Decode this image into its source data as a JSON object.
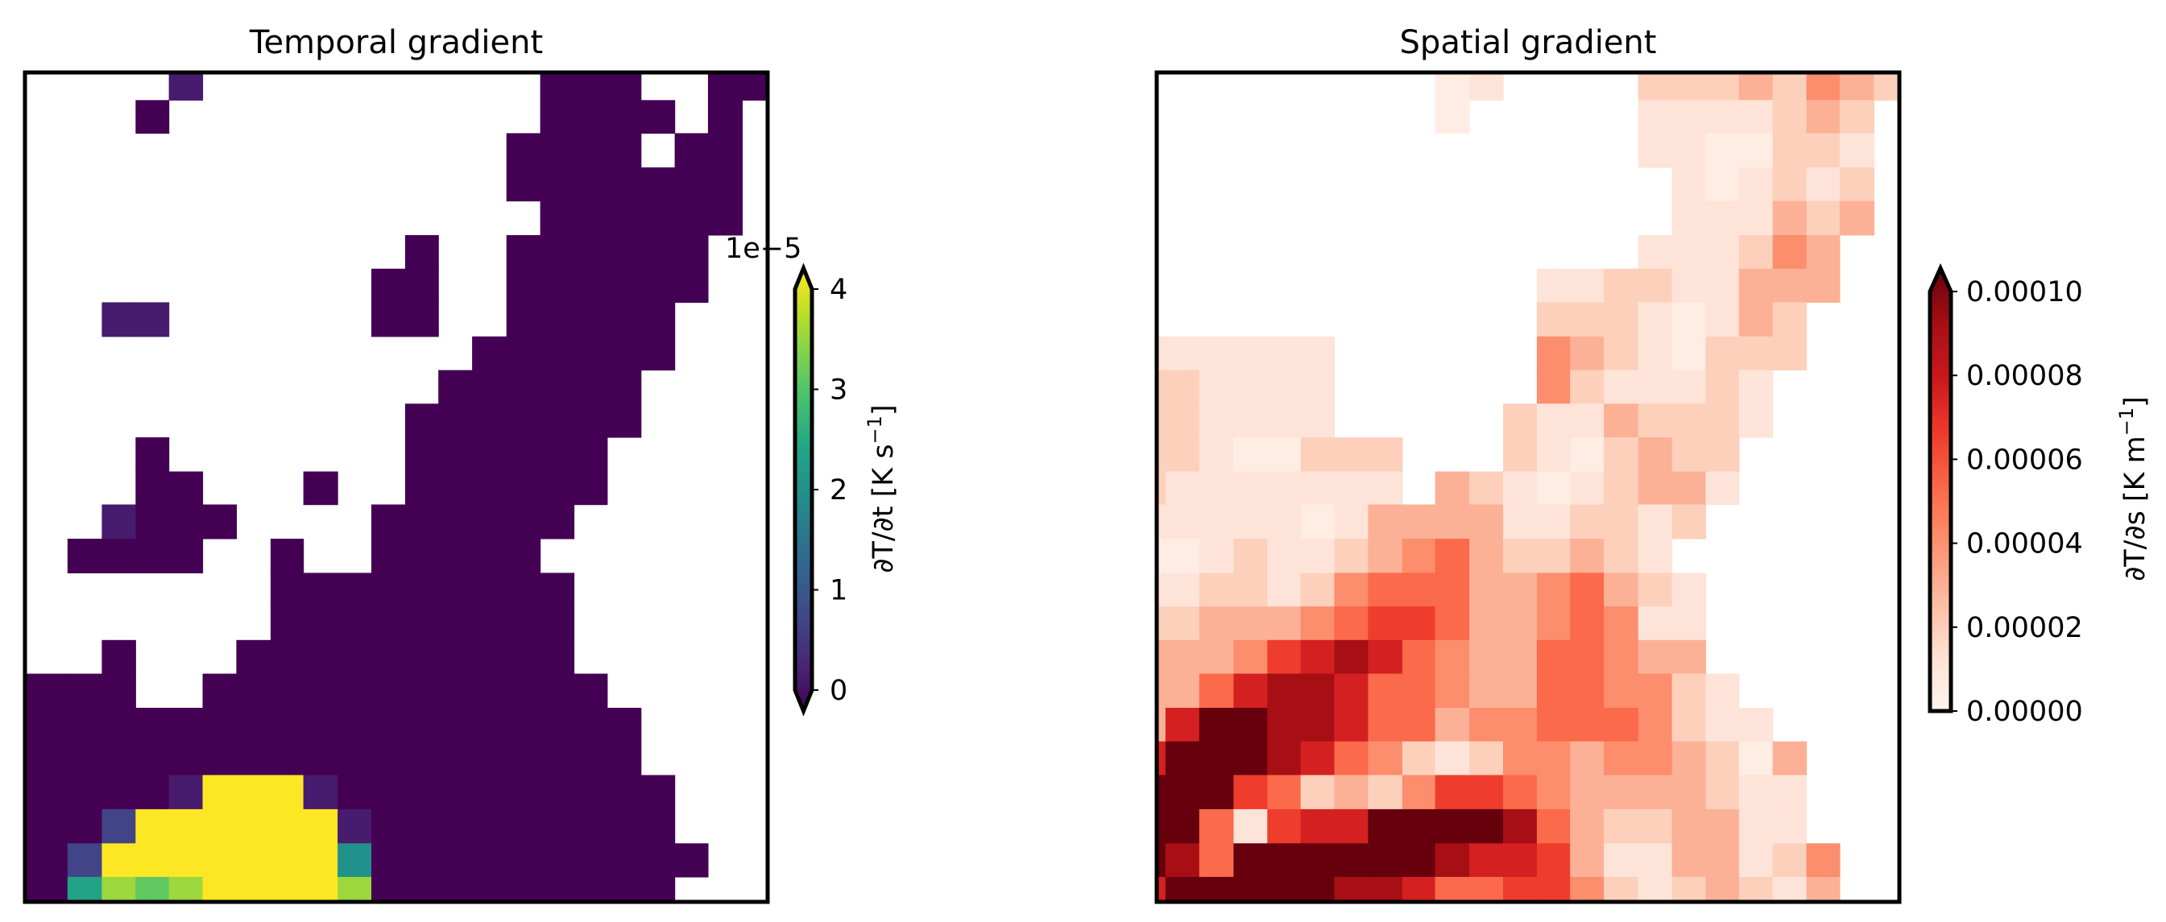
{
  "chart_data": [
    {
      "type": "heatmap",
      "title": "Temporal gradient",
      "colormap": "viridis",
      "colorbar": {
        "label": {
          "main": "∂T/∂t [K s",
          "sup": "−1",
          "close": "]"
        },
        "offset_text": "1e−5",
        "ticks": [
          0,
          1,
          2,
          3,
          4
        ],
        "tick_labels": [
          "0",
          "1",
          "2",
          "3",
          "4"
        ],
        "range": [
          0,
          4
        ],
        "extend": "both",
        "scale_factor": 1e-05
      },
      "cell_key": {
        ".": null,
        "0": 0.0,
        "a": 0.3,
        "b": 0.8,
        "t": 2.0,
        "g": 2.3,
        "m": 3.0,
        "l": 3.4,
        "Y": 4.5
      },
      "rows": [
        "....a..........000..00",
        "...0...........0000.0.",
        "..............0000.00.",
        "..............0000000.",
        "...............000000.",
        "...........0..000000..",
        "..........00..000000..",
        "..aa......00..00000...",
        ".............000000...",
        "............000000....",
        "...........0000000....",
        "...0.......000000.....",
        "...00...0..000000.....",
        "..a000....000000......",
        ".0000..0..00000.......",
        ".......000000000......",
        ".......000000000......",
        "..0...0000000000......",
        "000..000000000000.....",
        "000000000000000000....",
        "000000000000000000....",
        "0000aYYYa0000000000...",
        "00bYYYYYYa000000000...",
        "0bYYYYYYYt0000000000..",
        "0glmlYYYYl000000000..."
      ]
    },
    {
      "type": "heatmap",
      "title": "Spatial gradient",
      "colormap": "Reds",
      "colorbar": {
        "label": {
          "main": "∂T/∂s [K m",
          "sup": "−1",
          "close": "]"
        },
        "ticks": [
          0,
          2e-05,
          4e-05,
          6e-05,
          8e-05,
          0.0001
        ],
        "tick_labels": [
          "0.00000",
          "0.00002",
          "0.00004",
          "0.00006",
          "0.00008",
          "0.00010"
        ],
        "range": [
          0,
          0.0001
        ],
        "extend": "max"
      },
      "cell_key": {
        ".": null,
        "0": 5e-06,
        "1": 1e-05,
        "2": 1.8e-05,
        "3": 2.8e-05,
        "4": 3.9e-05,
        "5": 5e-05,
        "6": 6.2e-05,
        "7": 7.2e-05,
        "8": 8.7e-05,
        "9": 0.00011
      },
      "rows": [
        ".........01....22232432",
        ".........0.....1111232.",
        "...............1100221.",
        "................101212.",
        "................111323.",
        "...............111243..",
        "............112211333..",
        "............22210132...",
        "111111......43210222...",
        "221111......4211121....",
        "221111.....21132221....",
        "22100222...2102322.....",
        "21111111.321012331.....",
        "11111013333112212......",
        "0012112345322321.......",
        "11221245553345321......",
        "22333456653345411......",
        "33346787543355433......",
        "335788755433554421.....",
        "3799887553445554211....",
        "79998754212443443203...",
        "99965232466543333211...",
        "99516779999853223311...",
        "985999999877631133124..",
        "799999887556642123213.."
      ]
    }
  ]
}
